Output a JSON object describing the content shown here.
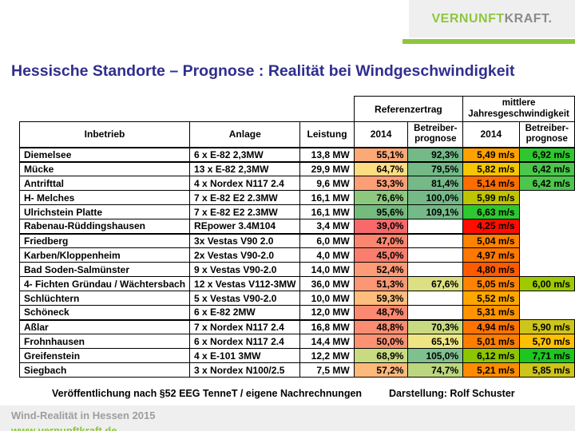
{
  "logo": {
    "part1": "VERNUNFT",
    "part2": "KRAFT.",
    "green": "#8dc63f",
    "gray": "#8a8a8a"
  },
  "title": "Hessische Standorte – Prognose : Realität bei Windgeschwindigkeit",
  "chart_data": {
    "type": "table",
    "title": "Hessische Standorte – Prognose : Realität bei Windgeschwindigkeit",
    "group_headers": [
      "Referenzertrag",
      "mittlere Jahresgeschwindigkeit"
    ],
    "columns": [
      "Inbetrieb",
      "Anlage",
      "Leistung",
      "2014",
      "Betreiber-prognose",
      "2014",
      "Betreiber-prognose"
    ],
    "rows": [
      {
        "name": "Diemelsee",
        "anlage": "6 x E-82 2,3MW",
        "leistung": "13,8 MW",
        "ertrag_2014": "55,1%",
        "ertrag_2014_color": "#fca877",
        "ertrag_prognose": "92,3%",
        "ertrag_prognose_color": "#74b987",
        "wind_2014": "5,49 m/s",
        "wind_2014_color": "#ffa100",
        "wind_prognose": "6,92 m/s",
        "wind_prognose_color": "#2fc72f",
        "thick_bottom": true
      },
      {
        "name": "Mücke",
        "anlage": "13 x E-82 2,3MW",
        "leistung": "29,9 MW",
        "ertrag_2014": "64,7%",
        "ertrag_2014_color": "#fedd82",
        "ertrag_prognose": "79,5%",
        "ertrag_prognose_color": "#74b987",
        "wind_2014": "5,82 m/s",
        "wind_2014_color": "#f6c600",
        "wind_prognose": "6,42 m/s",
        "wind_prognose_color": "#4cc64c",
        "thick_bottom": false
      },
      {
        "name": "Antrifttal",
        "anlage": "4 x Nordex N117 2.4",
        "leistung": "9,6 MW",
        "ertrag_2014": "53,3%",
        "ertrag_2014_color": "#fc9f76",
        "ertrag_prognose": "81,4%",
        "ertrag_prognose_color": "#74b987",
        "wind_2014": "5,14 m/s",
        "wind_2014_color": "#ff6c00",
        "wind_prognose": "6,42 m/s",
        "wind_prognose_color": "#4cc64c",
        "thick_bottom": false
      },
      {
        "name": "H- Melches",
        "anlage": "7 x E-82 E2 2.3MW",
        "leistung": "16,1 MW",
        "ertrag_2014": "76,6%",
        "ertrag_2014_color": "#8cc87e",
        "ertrag_prognose": "100,0%",
        "ertrag_prognose_color": "#74b987",
        "wind_2014": "5,99 m/s",
        "wind_2014_color": "#bfc400",
        "wind_prognose": "",
        "wind_prognose_color": "",
        "thick_bottom": false
      },
      {
        "name": "Ulrichstein Platte",
        "anlage": "7 x E-82 E2 2.3MW",
        "leistung": "16,1 MW",
        "ertrag_2014": "95,6%",
        "ertrag_2014_color": "#74bb7d",
        "ertrag_prognose": "109,1%",
        "ertrag_prognose_color": "#74b987",
        "wind_2014": "6,63 m/s",
        "wind_2014_color": "#2fc72f",
        "wind_prognose": "",
        "wind_prognose_color": "",
        "thick_bottom": false
      },
      {
        "name": "Rabenau-Rüddingshausen",
        "anlage": "REpower 3.4M104",
        "leistung": "3,4 MW",
        "ertrag_2014": "39,0%",
        "ertrag_2014_color": "#f8696b",
        "ertrag_prognose": "",
        "ertrag_prognose_color": "#ffffff",
        "wind_2014": "4,25 m/s",
        "wind_2014_color": "#ff0d00",
        "wind_prognose": "",
        "wind_prognose_color": "",
        "thick_bottom": true
      },
      {
        "name": "Friedberg",
        "anlage": "3x Vestas V90 2.0",
        "leistung": "6,0 MW",
        "ertrag_2014": "47,0%",
        "ertrag_2014_color": "#fa866f",
        "ertrag_prognose": "",
        "ertrag_prognose_color": "#ffffff",
        "wind_2014": "5,04 m/s",
        "wind_2014_color": "#ff8200",
        "wind_prognose": "",
        "wind_prognose_color": "",
        "thick_bottom": false
      },
      {
        "name": "Karben/Kloppenheim",
        "anlage": "2x Vestas V90-2.0",
        "leistung": "4,0 MW",
        "ertrag_2014": "45,0%",
        "ertrag_2014_color": "#f97e6e",
        "ertrag_prognose": "",
        "ertrag_prognose_color": "#ffffff",
        "wind_2014": "4,97 m/s",
        "wind_2014_color": "#ff7800",
        "wind_prognose": "",
        "wind_prognose_color": "",
        "thick_bottom": false
      },
      {
        "name": "Bad Soden-Salmünster",
        "anlage": "9 x Vestas V90-2.0",
        "leistung": "14,0 MW",
        "ertrag_2014": "52,4%",
        "ertrag_2014_color": "#fc9b75",
        "ertrag_prognose": "",
        "ertrag_prognose_color": "#ffffff",
        "wind_2014": "4,80 m/s",
        "wind_2014_color": "#ff5a00",
        "wind_prognose": "",
        "wind_prognose_color": "",
        "thick_bottom": false
      },
      {
        "name": "4- Fichten Gründau / Wächtersbach",
        "anlage": "12 x Vestas V112-3MW",
        "leistung": "36,0 MW",
        "ertrag_2014": "51,3%",
        "ertrag_2014_color": "#fb9774",
        "ertrag_prognose": "67,6%",
        "ertrag_prognose_color": "#dde082",
        "wind_2014": "5,05 m/s",
        "wind_2014_color": "#ff8300",
        "wind_prognose": "6,00 m/s",
        "wind_prognose_color": "#9dcb00",
        "thick_bottom": false
      },
      {
        "name": "Schlüchtern",
        "anlage": "5 x Vestas V90-2.0",
        "leistung": "10,0 MW",
        "ertrag_2014": "59,3%",
        "ertrag_2014_color": "#fdbd7d",
        "ertrag_prognose": "",
        "ertrag_prognose_color": "#ffffff",
        "wind_2014": "5,52 m/s",
        "wind_2014_color": "#ffa700",
        "wind_prognose": "",
        "wind_prognose_color": "",
        "thick_bottom": false
      },
      {
        "name": "Schöneck",
        "anlage": "6 x E-82 2MW",
        "leistung": "12,0 MW",
        "ertrag_2014": "48,7%",
        "ertrag_2014_color": "#fa8971",
        "ertrag_prognose": "",
        "ertrag_prognose_color": "#ffffff",
        "wind_2014": "5,31 m/s",
        "wind_2014_color": "#ff9300",
        "wind_prognose": "",
        "wind_prognose_color": "",
        "thick_bottom": true
      },
      {
        "name": "Aßlar",
        "anlage": "7 x Nordex N117 2.4",
        "leistung": "16,8 MW",
        "ertrag_2014": "48,8%",
        "ertrag_2014_color": "#fa8d71",
        "ertrag_prognose": "70,3%",
        "ertrag_prognose_color": "#c9db81",
        "wind_2014": "4,94 m/s",
        "wind_2014_color": "#ff7300",
        "wind_prognose": "5,90 m/s",
        "wind_prognose_color": "#ccc51c",
        "thick_bottom": false
      },
      {
        "name": "Frohnhausen",
        "anlage": "6 x Nordex N117 2.4",
        "leistung": "14,4 MW",
        "ertrag_2014": "50,0%",
        "ertrag_2014_color": "#fb9273",
        "ertrag_prognose": "65,1%",
        "ertrag_prognose_color": "#efe683",
        "wind_2014": "5,01 m/s",
        "wind_2014_color": "#ff7e00",
        "wind_prognose": "5,70 m/s",
        "wind_prognose_color": "#ffc000",
        "thick_bottom": false
      },
      {
        "name": "Greifenstein",
        "anlage": "4 x E-101 3MW",
        "leistung": "12,2 MW",
        "ertrag_2014": "68,9%",
        "ertrag_2014_color": "#c8db80",
        "ertrag_prognose": "105,0%",
        "ertrag_prognose_color": "#7fc08f",
        "wind_2014": "6,12 m/s",
        "wind_2014_color": "#8dc500",
        "wind_prognose": "7,71 m/s",
        "wind_prognose_color": "#1dc71d",
        "thick_bottom": false
      },
      {
        "name": "Siegbach",
        "anlage": "3 x Nordex N100/2.5",
        "leistung": "7,5 MW",
        "ertrag_2014": "57,2%",
        "ertrag_2014_color": "#fdb87b",
        "ertrag_prognose": "74,7%",
        "ertrag_prognose_color": "#bcd67f",
        "wind_2014": "5,21 m/s",
        "wind_2014_color": "#ff8c00",
        "wind_prognose": "5,85 m/s",
        "wind_prognose_color": "#ccc51c",
        "thick_bottom": false
      }
    ]
  },
  "footer": {
    "source": "Veröffentlichung nach §52 EEG TenneT / eigene Nachrechnungen",
    "credit": "Darstellung: Rolf Schuster"
  },
  "bottom_bar": {
    "label": "Wind-Realität in Hessen 2015",
    "url": "www.vernunftkraft.de"
  }
}
